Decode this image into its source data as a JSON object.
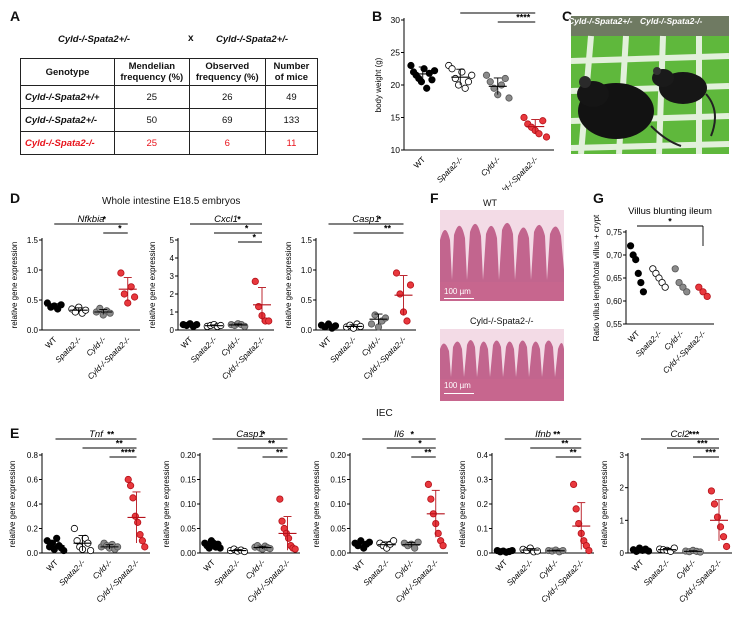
{
  "panels": {
    "A": "A",
    "B": "B",
    "C": "C",
    "D": "D",
    "E": "E",
    "F": "F",
    "G": "G"
  },
  "panel_a": {
    "cross_left": "Cyld-/-Spata2+/-",
    "cross_x": "x",
    "cross_right": "Cyld-/-Spata2+/-",
    "headers": [
      "Genotype",
      "Mendelian frequency (%)",
      "Observed frequency (%)",
      "Number of mice"
    ],
    "rows": [
      {
        "genotype": "Cyld-/-Spata2+/+",
        "mendelian": "25",
        "observed": "26",
        "number": "49",
        "highlight": false
      },
      {
        "genotype": "Cyld-/-Spata2+/-",
        "mendelian": "50",
        "observed": "69",
        "number": "133",
        "highlight": false
      },
      {
        "genotype": "Cyld-/-Spata2-/-",
        "mendelian": "25",
        "observed": "6",
        "number": "11",
        "highlight": true
      }
    ]
  },
  "panel_c": {
    "label_left": "Cyld-/-Spata2+/-",
    "label_right": "Cyld-/-Spata2-/-"
  },
  "panel_d_title": "Whole intestine E18.5 embryos",
  "panel_e_title": "IEC",
  "panel_f": {
    "top_label": "WT",
    "bottom_label": "Cyld-/-Spata2-/-",
    "scale_top": "100 µm",
    "scale_bottom": "100 µm"
  },
  "colors": {
    "WT": "#000000",
    "Spata2": "#ffffff",
    "Cyld": "#8a8a8a",
    "DKO": "#e8383d",
    "DKO_dark": "#b5121b"
  },
  "chart_data": [
    {
      "id": "B",
      "type": "scatter",
      "title": "",
      "ylabel": "body weight (g)",
      "ylim": [
        10,
        30
      ],
      "yticks": [
        10,
        15,
        20,
        25,
        30
      ],
      "categories": [
        "WT",
        "Spata2-/-",
        "Cyld-/-",
        "Cyld-/-Spata2-/-"
      ],
      "points": [
        [
          23,
          22,
          21.5,
          21,
          20.5,
          22.5,
          19.5,
          21.8,
          20.8,
          22.2
        ],
        [
          23,
          22.5,
          21,
          20,
          22,
          19.5,
          20.5,
          21.5
        ],
        [
          21.5,
          20.5,
          19.5,
          18.5,
          20,
          21,
          18
        ],
        [
          15,
          14,
          13.5,
          13,
          12.5,
          14.5,
          12
        ]
      ],
      "means": [
        21.7,
        21.2,
        19.8,
        13.6
      ],
      "sig": [
        {
          "a": 0,
          "b": 3,
          "label": "****"
        },
        {
          "a": 1,
          "b": 3,
          "label": "****"
        },
        {
          "a": 2,
          "b": 3,
          "label": "****"
        }
      ]
    },
    {
      "id": "D1",
      "type": "scatter",
      "title": "Nfkbia",
      "ylabel": "relative gene expression",
      "ylim": [
        0,
        1.5
      ],
      "yticks": [
        0,
        0.5,
        1.0,
        1.5
      ],
      "ytick_labels": [
        "0.0",
        "0.5",
        "1.0",
        "1.5"
      ],
      "categories": [
        "WT",
        "Spata2-/-",
        "Cyld-/-",
        "Cyld-/-Spata2-/-"
      ],
      "points": [
        [
          0.45,
          0.38,
          0.4,
          0.35,
          0.42
        ],
        [
          0.35,
          0.3,
          0.38,
          0.28,
          0.33
        ],
        [
          0.3,
          0.36,
          0.25,
          0.32,
          0.28
        ],
        [
          0.95,
          0.6,
          0.45,
          0.72,
          0.55
        ]
      ],
      "means": [
        0.4,
        0.33,
        0.3,
        0.68
      ],
      "sig": [
        {
          "a": 0,
          "b": 3,
          "label": "*"
        },
        {
          "a": 2,
          "b": 3,
          "label": "*"
        }
      ]
    },
    {
      "id": "D2",
      "type": "scatter",
      "title": "Cxcl1",
      "ylabel": "relative gene expression",
      "ylim": [
        0,
        5
      ],
      "yticks": [
        0,
        1,
        2,
        3,
        4,
        5
      ],
      "ytick_labels": [
        "0",
        "1",
        "2",
        "3",
        "4",
        "5"
      ],
      "categories": [
        "WT",
        "Spata2-/-",
        "Cyld-/-",
        "Cyld-/-Spata2-/-"
      ],
      "points": [
        [
          0.3,
          0.25,
          0.35,
          0.2,
          0.3
        ],
        [
          0.2,
          0.25,
          0.3,
          0.2,
          0.25
        ],
        [
          0.3,
          0.25,
          0.35,
          0.3,
          0.2
        ],
        [
          2.7,
          1.3,
          0.8,
          0.5,
          0.5
        ]
      ],
      "means": [
        0.28,
        0.24,
        0.28,
        1.4
      ],
      "sig": [
        {
          "a": 0,
          "b": 3,
          "label": "*"
        },
        {
          "a": 1,
          "b": 3,
          "label": "*"
        },
        {
          "a": 2,
          "b": 3,
          "label": "*"
        }
      ]
    },
    {
      "id": "D3",
      "type": "scatter",
      "title": "Casp1",
      "ylabel": "relative gene expression",
      "ylim": [
        0,
        1.5
      ],
      "yticks": [
        0,
        0.5,
        1.0,
        1.5
      ],
      "ytick_labels": [
        "0.0",
        "0.5",
        "1.0",
        "1.5"
      ],
      "categories": [
        "WT",
        "Spata2-/-",
        "Cyld-/-",
        "Cyld-/-Spata2-/-"
      ],
      "points": [
        [
          0.08,
          0.05,
          0.1,
          0.03,
          0.07
        ],
        [
          0.05,
          0.08,
          0.03,
          0.1,
          0.06
        ],
        [
          0.1,
          0.25,
          0.05,
          0.15,
          0.2
        ],
        [
          0.95,
          0.6,
          0.3,
          0.15,
          0.75
        ]
      ],
      "means": [
        0.07,
        0.06,
        0.18,
        0.58
      ],
      "sig": [
        {
          "a": 0,
          "b": 3,
          "label": "*"
        },
        {
          "a": 1,
          "b": 3,
          "label": "**"
        }
      ]
    },
    {
      "id": "G",
      "type": "bar",
      "title": "Villus blunting ileum",
      "ylabel": "Ratio villus length/total villus + crypt",
      "ylim": [
        0.55,
        0.75
      ],
      "yticks": [
        0.55,
        0.6,
        0.65,
        0.7,
        0.75
      ],
      "ytick_labels": [
        "0,55",
        "0,60",
        "0,65",
        "0,70",
        "0,75"
      ],
      "categories": [
        "WT",
        "Spata2-/-",
        "Cyld-/-",
        "Cyld-/-Spata2-/-"
      ],
      "values": [
        0.681,
        0.654,
        0.638,
        0.622
      ],
      "points": [
        [
          0.72,
          0.7,
          0.69,
          0.66,
          0.64,
          0.62
        ],
        [
          0.67,
          0.66,
          0.65,
          0.64,
          0.63
        ],
        [
          0.67,
          0.64,
          0.63,
          0.62
        ],
        [
          0.63,
          0.62,
          0.61
        ]
      ],
      "sig": [
        {
          "a": 0,
          "b": 3,
          "label": "*"
        }
      ]
    },
    {
      "id": "E1",
      "type": "scatter",
      "title": "Tnf",
      "ylabel": "relative gene expression",
      "ylim": [
        0,
        0.8
      ],
      "yticks": [
        0,
        0.2,
        0.4,
        0.6,
        0.8
      ],
      "ytick_labels": [
        "0.0",
        "0.2",
        "0.4",
        "0.6",
        "0.8"
      ],
      "categories": [
        "WT",
        "Spata2-/-",
        "Cyld-/-",
        "Cyld-/-Spata2-/-"
      ],
      "points": [
        [
          0.1,
          0.05,
          0.08,
          0.03,
          0.12,
          0.06,
          0.04,
          0.02
        ],
        [
          0.2,
          0.1,
          0.05,
          0.03,
          0.12,
          0.08,
          0.02
        ],
        [
          0.05,
          0.08,
          0.06,
          0.04,
          0.07,
          0.03,
          0.05
        ],
        [
          0.6,
          0.55,
          0.45,
          0.3,
          0.25,
          0.15,
          0.1,
          0.05
        ]
      ],
      "means": [
        0.06,
        0.08,
        0.05,
        0.29
      ],
      "sig": [
        {
          "a": 0,
          "b": 3,
          "label": "**"
        },
        {
          "a": 1,
          "b": 3,
          "label": "**"
        },
        {
          "a": 2,
          "b": 3,
          "label": "****"
        }
      ]
    },
    {
      "id": "E2",
      "type": "scatter",
      "title": "Casp1",
      "ylabel": "relative gene expression",
      "ylim": [
        0,
        0.2
      ],
      "yticks": [
        0,
        0.05,
        0.1,
        0.15,
        0.2
      ],
      "ytick_labels": [
        "0.00",
        "0.05",
        "0.10",
        "0.15",
        "0.20"
      ],
      "categories": [
        "WT",
        "Spata2-/-",
        "Cyld-/-",
        "Cyld-/-Spata2-/-"
      ],
      "points": [
        [
          0.02,
          0.015,
          0.01,
          0.025,
          0.02,
          0.012,
          0.018,
          0.01
        ],
        [
          0.005,
          0.008,
          0.004,
          0.006,
          0.003
        ],
        [
          0.012,
          0.015,
          0.01,
          0.008,
          0.014,
          0.011,
          0.009
        ],
        [
          0.11,
          0.065,
          0.05,
          0.04,
          0.03,
          0.015,
          0.01,
          0.008
        ]
      ],
      "means": [
        0.017,
        0.005,
        0.011,
        0.04
      ],
      "sig": [
        {
          "a": 0,
          "b": 3,
          "label": "*"
        },
        {
          "a": 1,
          "b": 3,
          "label": "**"
        },
        {
          "a": 2,
          "b": 3,
          "label": "**"
        }
      ]
    },
    {
      "id": "E3",
      "type": "scatter",
      "title": "Il6",
      "ylabel": "relative gene expression",
      "ylim": [
        0,
        0.2
      ],
      "yticks": [
        0,
        0.05,
        0.1,
        0.15,
        0.2
      ],
      "ytick_labels": [
        "0.00",
        "0.05",
        "0.10",
        "0.15",
        "0.20"
      ],
      "categories": [
        "WT",
        "Spata2-/-",
        "Cyld-/-",
        "Cyld-/-Spata2-/-"
      ],
      "points": [
        [
          0.02,
          0.015,
          0.025,
          0.01,
          0.018,
          0.022
        ],
        [
          0.02,
          0.015,
          0.01,
          0.018,
          0.025
        ],
        [
          0.02,
          0.015,
          0.018,
          0.01,
          0.022
        ],
        [
          0.14,
          0.11,
          0.08,
          0.06,
          0.04,
          0.025,
          0.015
        ]
      ],
      "means": [
        0.018,
        0.017,
        0.017,
        0.08
      ],
      "sig": [
        {
          "a": 0,
          "b": 3,
          "label": "*"
        },
        {
          "a": 1,
          "b": 3,
          "label": "*"
        },
        {
          "a": 2,
          "b": 3,
          "label": "**"
        }
      ]
    },
    {
      "id": "E4",
      "type": "scatter",
      "title": "Ifnb",
      "ylabel": "relative gene expression",
      "ylim": [
        0,
        0.4
      ],
      "yticks": [
        0,
        0.1,
        0.2,
        0.3,
        0.4
      ],
      "ytick_labels": [
        "0.0",
        "0.1",
        "0.2",
        "0.3",
        "0.4"
      ],
      "categories": [
        "WT",
        "Spata2-/-",
        "Cyld-/-",
        "Cyld-/-Spata2-/-"
      ],
      "points": [
        [
          0.01,
          0.005,
          0.008,
          0.003,
          0.006,
          0.01
        ],
        [
          0.015,
          0.01,
          0.02,
          0.005,
          0.008
        ],
        [
          0.01,
          0.008,
          0.012,
          0.005,
          0.01
        ],
        [
          0.28,
          0.18,
          0.12,
          0.08,
          0.05,
          0.03,
          0.01
        ]
      ],
      "means": [
        0.007,
        0.012,
        0.009,
        0.11
      ],
      "sig": [
        {
          "a": 0,
          "b": 3,
          "label": "**"
        },
        {
          "a": 1,
          "b": 3,
          "label": "**"
        },
        {
          "a": 2,
          "b": 3,
          "label": "**"
        }
      ]
    },
    {
      "id": "E5",
      "type": "scatter",
      "title": "Ccl2",
      "ylabel": "relative gene expression",
      "ylim": [
        0,
        3
      ],
      "yticks": [
        0,
        1,
        2,
        3
      ],
      "ytick_labels": [
        "0",
        "1",
        "2",
        "3"
      ],
      "categories": [
        "WT",
        "Spata2-/-",
        "Cyld-/-",
        "Cyld-/-Spata2-/-"
      ],
      "points": [
        [
          0.1,
          0.05,
          0.15,
          0.08,
          0.12,
          0.06
        ],
        [
          0.12,
          0.1,
          0.08,
          0.05,
          0.15
        ],
        [
          0.06,
          0.04,
          0.08,
          0.05,
          0.03
        ],
        [
          1.9,
          1.5,
          1.1,
          0.8,
          0.5,
          0.2
        ]
      ],
      "means": [
        0.09,
        0.1,
        0.05,
        1.0
      ],
      "sig": [
        {
          "a": 0,
          "b": 3,
          "label": "***"
        },
        {
          "a": 1,
          "b": 3,
          "label": "***"
        },
        {
          "a": 2,
          "b": 3,
          "label": "***"
        }
      ]
    }
  ]
}
